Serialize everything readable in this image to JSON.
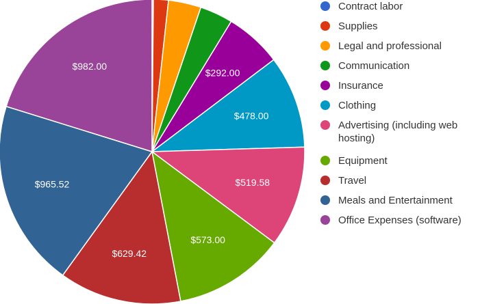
{
  "chart_data": {
    "type": "pie",
    "title": "",
    "start_angle_deg": 0,
    "direction": "clockwise",
    "legend_position": "right",
    "slices": [
      {
        "name": "Contract labor",
        "value": 7,
        "label": "",
        "color": "#3366cc"
      },
      {
        "name": "Supplies",
        "value": 77,
        "label": "",
        "color": "#dc3912"
      },
      {
        "name": "Legal and professional",
        "value": 168,
        "label": "",
        "color": "#ff9900"
      },
      {
        "name": "Communication",
        "value": 170,
        "label": "",
        "color": "#109618"
      },
      {
        "name": "Insurance",
        "value": 292,
        "label": "$292.00",
        "color": "#990099"
      },
      {
        "name": "Clothing",
        "value": 478,
        "label": "$478.00",
        "color": "#0099c6"
      },
      {
        "name": "Advertising (including web hosting)",
        "value": 519.58,
        "label": "$519.58",
        "color": "#dd4477"
      },
      {
        "name": "Equipment",
        "value": 573,
        "label": "$573.00",
        "color": "#66aa00"
      },
      {
        "name": "Travel",
        "value": 629.42,
        "label": "$629.42",
        "color": "#b82e2e"
      },
      {
        "name": "Meals and Entertainment",
        "value": 965.52,
        "label": "$965.52",
        "color": "#316395"
      },
      {
        "name": "Office Expenses (software)",
        "value": 982,
        "label": "$982.00",
        "color": "#994499"
      }
    ]
  }
}
